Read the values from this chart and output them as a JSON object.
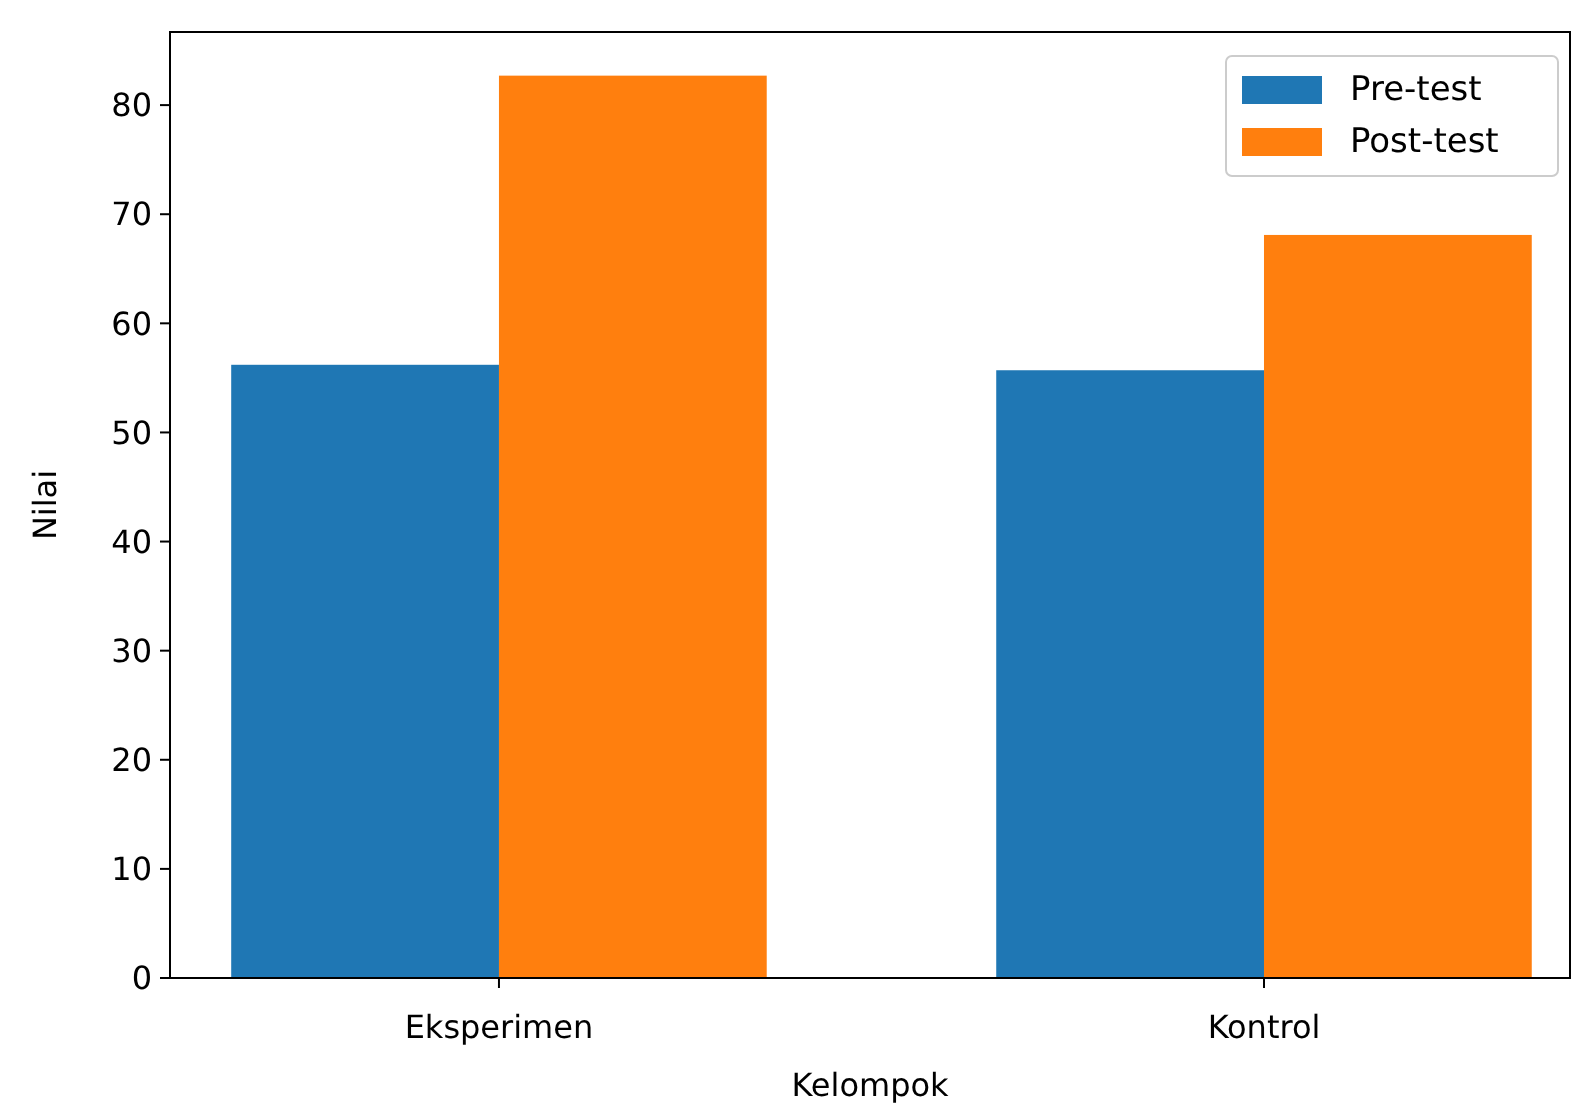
{
  "chart_data": {
    "type": "bar",
    "xlabel": "Kelompok",
    "ylabel": "Nilai",
    "categories": [
      "Eksperimen",
      "Kontrol"
    ],
    "series": [
      {
        "name": "Pre-test",
        "color": "#1f77b4",
        "values": [
          56.2,
          55.7
        ]
      },
      {
        "name": "Post-test",
        "color": "#ff7f0e",
        "values": [
          82.7,
          68.1
        ]
      }
    ],
    "ylim": [
      0,
      86.7
    ],
    "yticks": [
      0,
      10,
      20,
      30,
      40,
      50,
      60,
      70,
      80
    ],
    "grid": false,
    "legend": "top right"
  }
}
